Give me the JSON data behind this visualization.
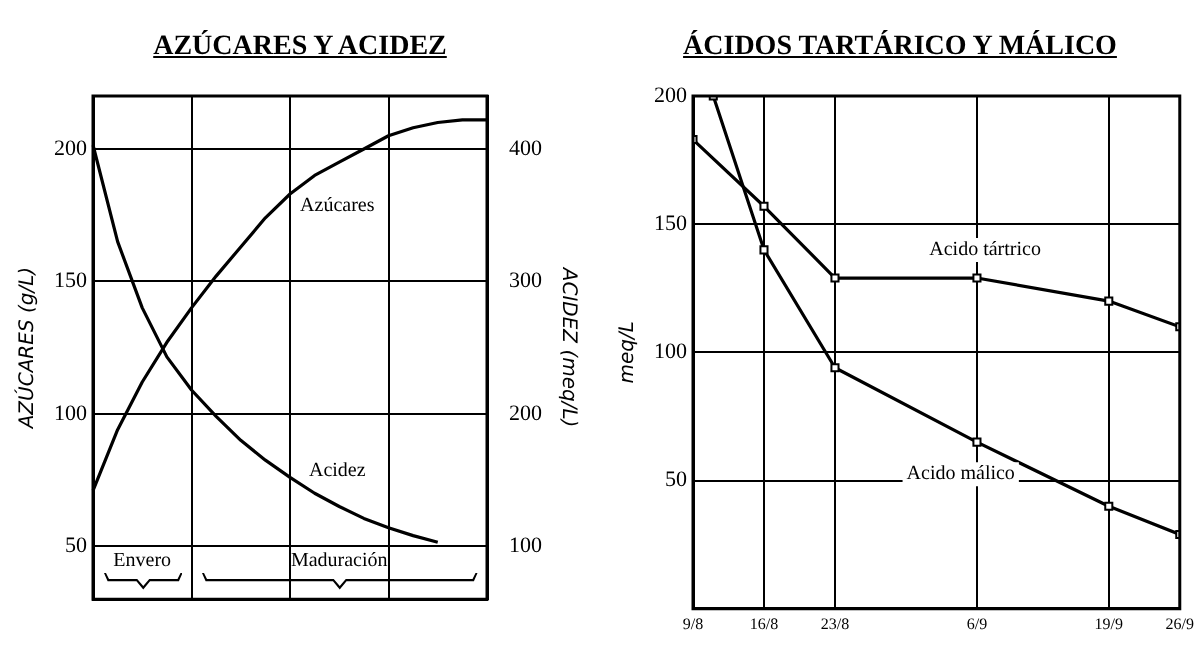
{
  "chart_data": [
    {
      "type": "line",
      "title": "AZÚCARES Y ACIDEZ",
      "ylabel": "AZÚCARES (g/L)",
      "y2label": "ACIDEZ (meq/L)",
      "categories": [
        null,
        null,
        null,
        null,
        null,
        null,
        null,
        null,
        null,
        null,
        null,
        null,
        null,
        null,
        null,
        null,
        null
      ],
      "series": [
        {
          "name": "Azúcares",
          "color": "#000000",
          "values": [
            71,
            94,
            112,
            127,
            140,
            152,
            163,
            174,
            183,
            190,
            195,
            200,
            205,
            208,
            210,
            211,
            211
          ]
        },
        {
          "name": "Acidez",
          "color": "#000000",
          "axis": "y2",
          "values": [
            403,
            330,
            280,
            243,
            218,
            198,
            180,
            165,
            152,
            140,
            130,
            121,
            114,
            108,
            103,
            null,
            null
          ]
        }
      ],
      "ylim": [
        30,
        220
      ],
      "yticks": [
        50,
        100,
        150,
        200
      ],
      "y2lim": [
        60,
        440
      ],
      "y2ticks": [
        100,
        200,
        300,
        400
      ],
      "grid": true,
      "marker": "none",
      "annotations": [
        "Envero",
        "Maduración"
      ]
    },
    {
      "type": "line",
      "title": "ÁCIDOS TARTÁRICO Y MÁLICO",
      "ylabel": "meq/L",
      "series": [
        {
          "name": "Acido tártrico",
          "color": "#000000",
          "x": [
            "--08-09",
            "--08-16",
            "--08-23",
            "--09-06",
            "--09-19",
            "--09-26"
          ],
          "values": [
            183,
            157,
            129,
            129,
            120,
            110
          ]
        },
        {
          "name": "Acido málico",
          "color": "#000000",
          "x": [
            "--08-11",
            "--08-16",
            "--08-23",
            "--09-06",
            "--09-19",
            "--09-26"
          ],
          "values": [
            200,
            140,
            94,
            65,
            40,
            29
          ]
        }
      ],
      "xlim": [
        "--08-09",
        "--09-26"
      ],
      "xticks": [
        {
          "value": "--08-09",
          "label": "9/8"
        },
        {
          "value": "--08-16",
          "label": "16/8"
        },
        {
          "value": "--08-23",
          "label": "23/8"
        },
        {
          "value": "--09-06",
          "label": "6/9"
        },
        {
          "value": "--09-19",
          "label": "19/9"
        },
        {
          "value": "--09-26",
          "label": "26/9"
        }
      ],
      "ylim": [
        0,
        200
      ],
      "yticks": [
        50,
        100,
        150,
        200
      ],
      "grid": true,
      "marker": "square"
    }
  ]
}
